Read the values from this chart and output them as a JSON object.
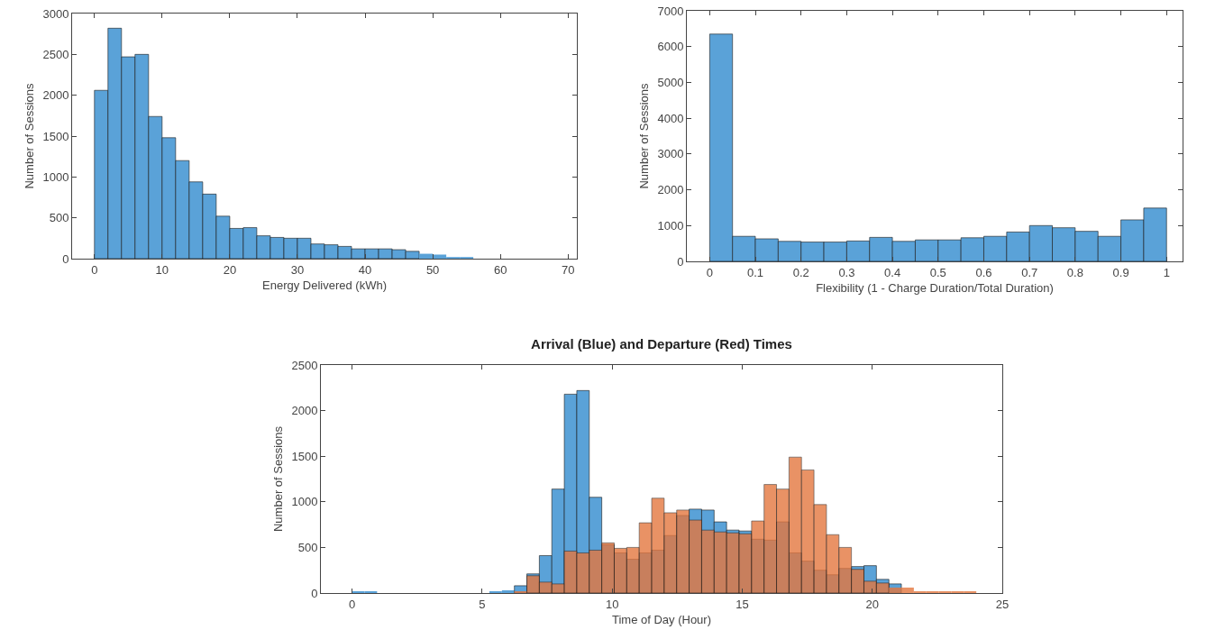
{
  "chart_data": [
    {
      "type": "histogram",
      "xlabel": "Energy Delivered (kWh)",
      "ylabel": "Number of Sessions",
      "color": "#5aa2d8",
      "bins": [
        0,
        2,
        4,
        6,
        8,
        10,
        12,
        14,
        16,
        18,
        20,
        22,
        24,
        26,
        28,
        30,
        32,
        34,
        36,
        38,
        40,
        42,
        44,
        46,
        48,
        50,
        52,
        54,
        56
      ],
      "values": [
        2060,
        2820,
        2470,
        2500,
        1740,
        1480,
        1200,
        940,
        790,
        520,
        370,
        380,
        280,
        260,
        250,
        250,
        180,
        170,
        150,
        120,
        120,
        120,
        110,
        90,
        60,
        50,
        20,
        20
      ],
      "xlim": [
        -3.3,
        71.3
      ],
      "ylim": [
        0,
        3000
      ],
      "xticks": [
        0,
        10,
        20,
        30,
        40,
        50,
        60,
        70
      ],
      "yticks": [
        0,
        500,
        1000,
        1500,
        2000,
        2500,
        3000
      ],
      "grid": false
    },
    {
      "type": "histogram",
      "xlabel": "Flexibility (1 - Charge Duration/Total Duration)",
      "ylabel": "Number of Sessions",
      "color": "#5aa2d8",
      "bins": [
        0,
        0.05,
        0.1,
        0.15,
        0.2,
        0.25,
        0.3,
        0.35,
        0.4,
        0.45,
        0.5,
        0.55,
        0.6,
        0.65,
        0.7,
        0.75,
        0.8,
        0.85,
        0.9,
        0.95,
        1
      ],
      "values": [
        6350,
        700,
        630,
        560,
        540,
        540,
        570,
        670,
        560,
        600,
        600,
        660,
        700,
        820,
        1000,
        940,
        840,
        700,
        1160,
        1490
      ],
      "xlim": [
        -0.05,
        1.035
      ],
      "ylim": [
        0,
        7000
      ],
      "xticks": [
        0,
        0.1,
        0.2,
        0.3,
        0.4,
        0.5,
        0.6,
        0.7,
        0.8,
        0.9,
        1
      ],
      "yticks": [
        0,
        1000,
        2000,
        3000,
        4000,
        5000,
        6000,
        7000
      ],
      "grid": false
    },
    {
      "type": "histogram",
      "title": "Arrival (Blue) and Departure (Red) Times",
      "xlabel": "Time of Day (Hour)",
      "ylabel": "Number of Sessions",
      "bins": [
        0,
        0.48,
        0.96,
        1.44,
        1.92,
        2.4,
        2.88,
        3.36,
        3.84,
        4.32,
        4.8,
        5.28,
        5.76,
        6.24,
        6.72,
        7.2,
        7.68,
        8.16,
        8.64,
        9.12,
        9.6,
        10.08,
        10.56,
        11.04,
        11.52,
        12,
        12.48,
        12.96,
        13.44,
        13.92,
        14.4,
        14.88,
        15.36,
        15.84,
        16.32,
        16.8,
        17.28,
        17.76,
        18.24,
        18.72,
        19.2,
        19.68,
        20.16,
        20.64,
        21.12,
        21.6,
        22.08,
        22.56,
        23.04,
        23.52,
        24
      ],
      "series": [
        {
          "color": "#5aa2d8",
          "values": [
            20,
            20,
            0,
            0,
            0,
            0,
            0,
            0,
            0,
            0,
            0,
            20,
            30,
            80,
            210,
            410,
            1140,
            2180,
            2220,
            1050,
            530,
            440,
            370,
            440,
            470,
            630,
            850,
            920,
            910,
            780,
            690,
            680,
            590,
            580,
            780,
            440,
            350,
            250,
            200,
            270,
            290,
            300,
            150,
            100,
            null,
            0,
            0,
            0,
            0,
            0
          ]
        },
        {
          "color": "#e4773f",
          "values": [
            0,
            0,
            0,
            0,
            0,
            0,
            0,
            0,
            0,
            0,
            0,
            0,
            0,
            20,
            190,
            120,
            100,
            460,
            440,
            470,
            550,
            490,
            500,
            770,
            1040,
            880,
            910,
            800,
            690,
            670,
            660,
            650,
            790,
            1190,
            1140,
            1490,
            1350,
            970,
            640,
            500,
            260,
            130,
            110,
            60,
            60,
            20,
            20,
            20,
            20,
            20
          ]
        }
      ],
      "xlim": [
        -1.2,
        25
      ],
      "ylim": [
        0,
        2500
      ],
      "xticks": [
        0,
        5,
        10,
        15,
        20,
        25
      ],
      "yticks": [
        0,
        500,
        1000,
        1500,
        2000,
        2500
      ],
      "grid": false
    }
  ]
}
